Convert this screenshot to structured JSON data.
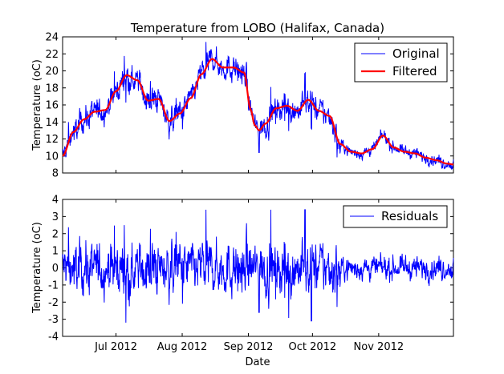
{
  "colors": {
    "original": "#0000ff",
    "filtered": "#ff0000",
    "residuals": "#0000ff",
    "axes": "#000000"
  },
  "chart_data": [
    {
      "type": "line",
      "title": "Temperature from LOBO (Halifax, Canada)",
      "xlabel": "",
      "ylabel": "Temperature (oC)",
      "x_range_days": [
        0,
        183
      ],
      "ylim": [
        8,
        24
      ],
      "yticks": [
        "8",
        "10",
        "12",
        "14",
        "16",
        "18",
        "20",
        "22",
        "24"
      ],
      "legend": [
        "Original",
        "Filtered"
      ],
      "series": [
        {
          "name": "Filtered",
          "x": [
            0,
            5,
            10,
            15,
            20,
            25,
            30,
            35,
            40,
            45,
            50,
            55,
            60,
            65,
            70,
            75,
            80,
            85,
            88,
            90,
            92,
            95,
            100,
            105,
            110,
            115,
            120,
            125,
            130,
            135,
            140,
            145,
            150,
            155,
            160,
            165,
            170,
            175,
            180,
            183
          ],
          "values": [
            10,
            12.8,
            14.3,
            15.2,
            15.4,
            17.6,
            19.5,
            18.9,
            16.5,
            16.7,
            14.1,
            15.0,
            16.8,
            19.6,
            21.4,
            20.4,
            20.4,
            19.8,
            15.5,
            13.6,
            13.0,
            13.8,
            15.6,
            15.9,
            15.3,
            16.6,
            15.3,
            14.7,
            11.4,
            10.5,
            10.3,
            10.8,
            12.4,
            11.0,
            10.5,
            10.3,
            9.8,
            9.5,
            9.1,
            9.0
          ]
        },
        {
          "name": "Original",
          "note": "Filtered trend plus high-frequency variability (shown as noisy blue line)"
        }
      ]
    },
    {
      "type": "line",
      "title": "",
      "xlabel": "Date",
      "ylabel": "Temperature (oC)",
      "x_range_days": [
        0,
        183
      ],
      "ylim": [
        -4,
        4
      ],
      "yticks": [
        "-4",
        "-3",
        "-2",
        "-1",
        "0",
        "1",
        "2",
        "3",
        "4"
      ],
      "xticks": [
        {
          "day": 25,
          "label": "Jul 2012"
        },
        {
          "day": 56,
          "label": "Aug 2012"
        },
        {
          "day": 87,
          "label": "Sep 2012"
        },
        {
          "day": 117,
          "label": "Oct 2012"
        },
        {
          "day": 148,
          "label": "Nov 2012"
        }
      ],
      "legend": [
        "Residuals"
      ],
      "series": [
        {
          "name": "Residuals",
          "amplitude_by_period": [
            {
              "from": 0,
              "to": 130,
              "typical_abs": 1.0,
              "max": 3.4,
              "min": -3.1
            },
            {
              "from": 130,
              "to": 183,
              "typical_abs": 0.4
            }
          ]
        }
      ]
    }
  ]
}
